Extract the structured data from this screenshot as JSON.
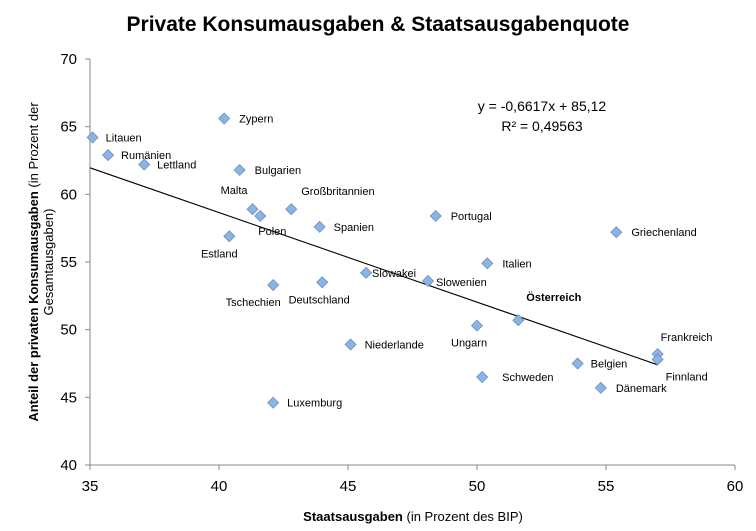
{
  "chart_data": {
    "type": "scatter",
    "title": "Private Konsumausgaben & Staatsausgabenquote",
    "xlabel": {
      "bold": "Staatsausgaben",
      "normal": " (in Prozent des BIP)"
    },
    "ylabel": {
      "bold": "Anteil der privaten Konsumausgaben",
      "normal_line1": " (in Prozent der",
      "normal_line2": "Gesamtausgaben)"
    },
    "xlim": [
      35,
      60
    ],
    "ylim": [
      40,
      70
    ],
    "xticks": [
      "35",
      "40",
      "45",
      "50",
      "55",
      "60"
    ],
    "yticks": [
      "40",
      "45",
      "50",
      "55",
      "60",
      "65",
      "70"
    ],
    "grid": false,
    "marker_color": "#8DB3E2",
    "marker_stroke": "#6A8FC4",
    "highlight_color": "#E0412A",
    "points": [
      {
        "label": "Litauen",
        "x": 35.1,
        "y": 64.2
      },
      {
        "label": "Rumänien",
        "x": 35.7,
        "y": 62.9
      },
      {
        "label": "Lettland",
        "x": 37.1,
        "y": 62.2
      },
      {
        "label": "Zypern",
        "x": 40.2,
        "y": 65.6
      },
      {
        "label": "Bulgarien",
        "x": 40.8,
        "y": 61.8
      },
      {
        "label": "Malta",
        "x": 41.3,
        "y": 58.9
      },
      {
        "label": "Polen",
        "x": 41.6,
        "y": 58.4
      },
      {
        "label": "Großbritannien",
        "x": 42.8,
        "y": 58.9
      },
      {
        "label": "Estland",
        "x": 40.4,
        "y": 56.9
      },
      {
        "label": "Spanien",
        "x": 43.9,
        "y": 57.6
      },
      {
        "label": "Portugal",
        "x": 48.4,
        "y": 58.4
      },
      {
        "label": "Griechenland",
        "x": 55.4,
        "y": 57.2
      },
      {
        "label": "Italien",
        "x": 50.4,
        "y": 54.9
      },
      {
        "label": "Slowakei",
        "x": 45.7,
        "y": 54.2
      },
      {
        "label": "Slowenien",
        "x": 48.1,
        "y": 53.6
      },
      {
        "label": "Deutschland",
        "x": 44.0,
        "y": 53.5
      },
      {
        "label": "Tschechien",
        "x": 42.1,
        "y": 53.3
      },
      {
        "label": "Österreich",
        "x": 51.6,
        "y": 50.7,
        "highlight": true
      },
      {
        "label": "Ungarn",
        "x": 50.0,
        "y": 50.3
      },
      {
        "label": "Niederlande",
        "x": 45.1,
        "y": 48.9
      },
      {
        "label": "Frankreich",
        "x": 57.0,
        "y": 48.2
      },
      {
        "label": "Finnland",
        "x": 57.0,
        "y": 47.8
      },
      {
        "label": "Belgien",
        "x": 53.9,
        "y": 47.5
      },
      {
        "label": "Schweden",
        "x": 50.2,
        "y": 46.5
      },
      {
        "label": "Dänemark",
        "x": 54.8,
        "y": 45.7
      },
      {
        "label": "Luxemburg",
        "x": 42.1,
        "y": 44.6
      }
    ],
    "trendline": {
      "slope": -0.6617,
      "intercept": 85.12,
      "x_range": [
        35,
        57
      ],
      "equation": "y = -0,6617x + 85,12",
      "r2": "R² = 0,49563"
    }
  }
}
